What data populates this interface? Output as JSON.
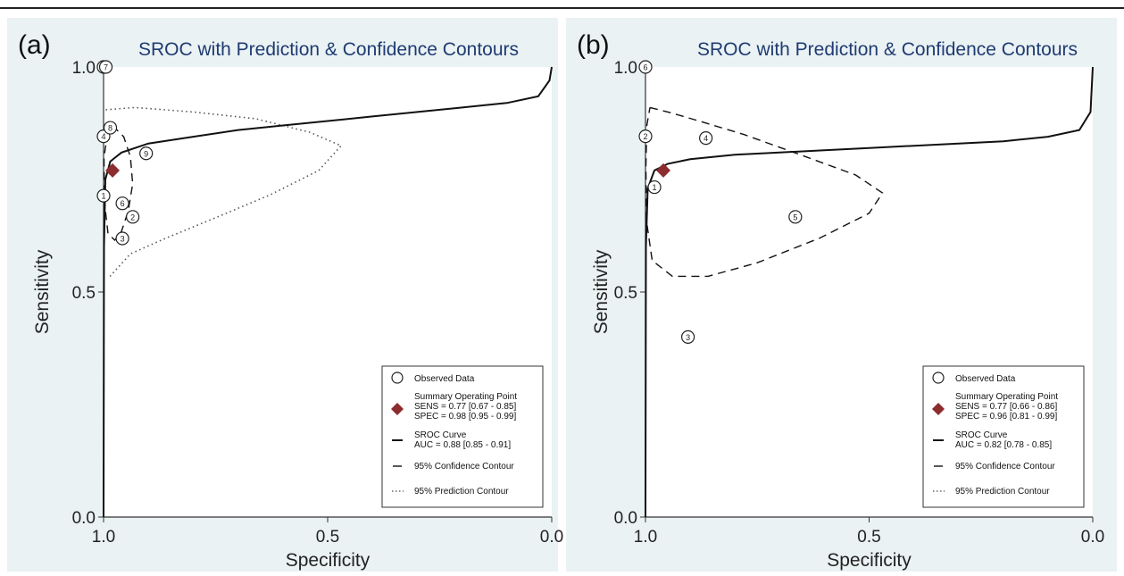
{
  "figure": {
    "colors": {
      "page_bg": "#ffffff",
      "panel_bg": "#eaf2f3",
      "plot_bg": "#ffffff",
      "title": "#1f3b73",
      "axis_text": "#222222",
      "summary_marker": "#8c2c2e",
      "line": "#111111",
      "frame": "#333333"
    }
  },
  "chart_data": [
    {
      "type": "scatter",
      "panel_label": "(a)",
      "title": "SROC with Prediction & Confidence Contours",
      "xlabel": "Specificity",
      "ylabel": "Sensitivity",
      "xlim": [
        1.0,
        0.0
      ],
      "ylim": [
        0.0,
        1.0
      ],
      "x_ticks": [
        "1.0",
        "0.5",
        "0.0"
      ],
      "y_ticks": [
        "0.0",
        "0.5",
        "1.0"
      ],
      "grid": false,
      "legend_position": "bottom-right",
      "observed_data": [
        {
          "label": "1",
          "specificity": 1.0,
          "sensitivity": 0.714
        },
        {
          "label": "2",
          "specificity": 0.935,
          "sensitivity": 0.667
        },
        {
          "label": "3",
          "specificity": 0.958,
          "sensitivity": 0.619
        },
        {
          "label": "4",
          "specificity": 1.0,
          "sensitivity": 0.846
        },
        {
          "label": "5",
          "specificity": 1.0,
          "sensitivity": 1.0
        },
        {
          "label": "6",
          "specificity": 0.958,
          "sensitivity": 0.697
        },
        {
          "label": "7",
          "specificity": 0.995,
          "sensitivity": 1.0
        },
        {
          "label": "8",
          "specificity": 0.985,
          "sensitivity": 0.865
        },
        {
          "label": "9",
          "specificity": 0.905,
          "sensitivity": 0.808
        }
      ],
      "summary_point": {
        "specificity": 0.98,
        "sensitivity": 0.77
      },
      "sroc_curve": [
        [
          1.0,
          0.0
        ],
        [
          0.999,
          0.6
        ],
        [
          0.996,
          0.75
        ],
        [
          0.985,
          0.79
        ],
        [
          0.96,
          0.81
        ],
        [
          0.9,
          0.83
        ],
        [
          0.8,
          0.845
        ],
        [
          0.7,
          0.86
        ],
        [
          0.6,
          0.87
        ],
        [
          0.5,
          0.88
        ],
        [
          0.4,
          0.89
        ],
        [
          0.3,
          0.9
        ],
        [
          0.2,
          0.91
        ],
        [
          0.1,
          0.92
        ],
        [
          0.03,
          0.935
        ],
        [
          0.005,
          0.97
        ],
        [
          0.0,
          1.0
        ]
      ],
      "confidence_contour": [
        [
          0.98,
          0.87
        ],
        [
          0.955,
          0.845
        ],
        [
          0.94,
          0.8
        ],
        [
          0.935,
          0.74
        ],
        [
          0.945,
          0.68
        ],
        [
          0.96,
          0.635
        ],
        [
          0.975,
          0.615
        ],
        [
          0.99,
          0.63
        ],
        [
          0.998,
          0.7
        ],
        [
          0.999,
          0.8
        ],
        [
          0.99,
          0.86
        ],
        [
          0.98,
          0.87
        ]
      ],
      "prediction_contour": [
        [
          0.995,
          0.905
        ],
        [
          0.93,
          0.91
        ],
        [
          0.8,
          0.9
        ],
        [
          0.66,
          0.885
        ],
        [
          0.54,
          0.855
        ],
        [
          0.47,
          0.825
        ],
        [
          0.52,
          0.77
        ],
        [
          0.63,
          0.715
        ],
        [
          0.75,
          0.665
        ],
        [
          0.86,
          0.62
        ],
        [
          0.94,
          0.585
        ],
        [
          0.99,
          0.53
        ]
      ],
      "legend": {
        "observed": "Observed Data",
        "summary_title": "Summary Operating Point",
        "summary_sens": "SENS = 0.77 [0.67 - 0.85]",
        "summary_spec": "SPEC = 0.98 [0.95 - 0.99]",
        "sroc_title": "SROC Curve",
        "sroc_auc": "AUC = 0.88 [0.85 - 0.91]",
        "confidence": "95% Confidence Contour",
        "prediction": "95% Prediction Contour"
      }
    },
    {
      "type": "scatter",
      "panel_label": "(b)",
      "title": "SROC with Prediction & Confidence Contours",
      "xlabel": "Specificity",
      "ylabel": "Sensitivity",
      "xlim": [
        1.0,
        0.0
      ],
      "ylim": [
        0.0,
        1.0
      ],
      "x_ticks": [
        "1.0",
        "0.5",
        "0.0"
      ],
      "y_ticks": [
        "0.0",
        "0.5",
        "1.0"
      ],
      "grid": false,
      "legend_position": "bottom-right",
      "observed_data": [
        {
          "label": "1",
          "specificity": 0.98,
          "sensitivity": 0.733
        },
        {
          "label": "2",
          "specificity": 1.0,
          "sensitivity": 0.846
        },
        {
          "label": "3",
          "specificity": 0.905,
          "sensitivity": 0.4
        },
        {
          "label": "4",
          "specificity": 0.865,
          "sensitivity": 0.842
        },
        {
          "label": "5",
          "specificity": 0.665,
          "sensitivity": 0.667
        },
        {
          "label": "6",
          "specificity": 1.0,
          "sensitivity": 1.0
        }
      ],
      "summary_point": {
        "specificity": 0.96,
        "sensitivity": 0.77
      },
      "sroc_curve": [
        [
          1.0,
          0.0
        ],
        [
          0.999,
          0.6
        ],
        [
          0.995,
          0.73
        ],
        [
          0.98,
          0.77
        ],
        [
          0.95,
          0.785
        ],
        [
          0.9,
          0.795
        ],
        [
          0.8,
          0.805
        ],
        [
          0.7,
          0.81
        ],
        [
          0.6,
          0.815
        ],
        [
          0.5,
          0.82
        ],
        [
          0.4,
          0.825
        ],
        [
          0.3,
          0.83
        ],
        [
          0.2,
          0.835
        ],
        [
          0.1,
          0.845
        ],
        [
          0.03,
          0.86
        ],
        [
          0.005,
          0.9
        ],
        [
          0.0,
          1.0
        ]
      ],
      "confidence_contour": [
        [
          0.99,
          0.91
        ],
        [
          0.95,
          0.9
        ],
        [
          0.88,
          0.88
        ],
        [
          0.78,
          0.85
        ],
        [
          0.64,
          0.8
        ],
        [
          0.53,
          0.76
        ],
        [
          0.47,
          0.72
        ],
        [
          0.5,
          0.675
        ],
        [
          0.61,
          0.62
        ],
        [
          0.75,
          0.565
        ],
        [
          0.86,
          0.535
        ],
        [
          0.94,
          0.535
        ],
        [
          0.985,
          0.57
        ],
        [
          0.998,
          0.66
        ],
        [
          0.999,
          0.78
        ],
        [
          0.997,
          0.87
        ],
        [
          0.99,
          0.91
        ]
      ],
      "prediction_contour": [],
      "legend": {
        "observed": "Observed Data",
        "summary_title": "Summary Operating Point",
        "summary_sens": "SENS = 0.77 [0.66 - 0.86]",
        "summary_spec": "SPEC = 0.96 [0.81 - 0.99]",
        "sroc_title": "SROC Curve",
        "sroc_auc": "AUC = 0.82 [0.78 - 0.85]",
        "confidence": "95% Confidence Contour",
        "prediction": "95% Prediction Contour"
      }
    }
  ]
}
